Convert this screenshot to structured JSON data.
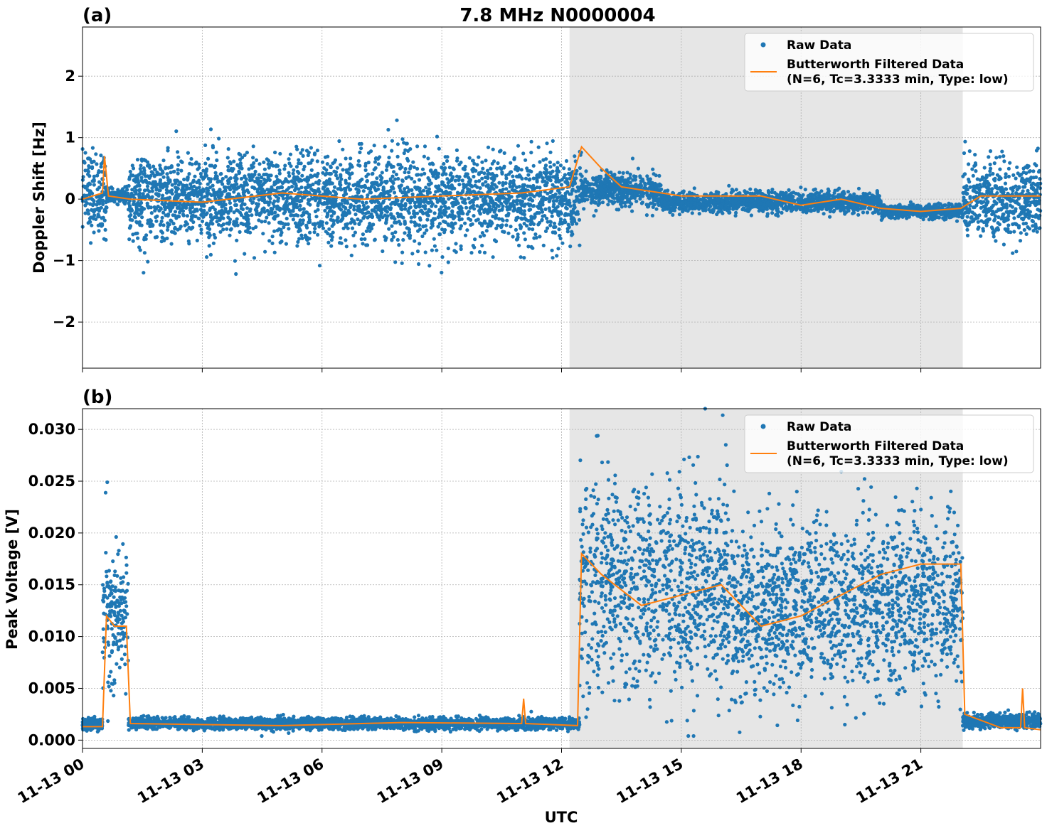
{
  "figure": {
    "title": "7.8 MHz N0000004",
    "xlabel": "UTC",
    "x_tick_labels": [
      "11-13 00",
      "11-13 03",
      "11-13 06",
      "11-13 09",
      "11-13 12",
      "11-13 15",
      "11-13 18",
      "11-13 21"
    ],
    "legend": {
      "raw": "Raw Data",
      "filtered_line1": "Butterworth Filtered Data",
      "filtered_line2": "(N=6, Tc=3.3333 min, Type: low)",
      "placement": "upper right"
    },
    "colors": {
      "raw": "#1f77b4",
      "filtered": "#ff7f0e",
      "shade": "#e6e6e6",
      "grid": "#b0b0b0"
    }
  },
  "chart_data": [
    {
      "type": "scatter",
      "panel_label": "(a)",
      "ylabel": "Doppler Shift [Hz]",
      "xlim_hours": [
        0,
        24
      ],
      "ylim": [
        -2.75,
        2.8
      ],
      "y_ticks": [
        2,
        1,
        0,
        -1,
        -2
      ],
      "y_tick_labels": [
        "2",
        "1",
        "0",
        "−1",
        "−2"
      ],
      "shaded_region_hours": [
        12.2,
        22.05
      ],
      "grid": true,
      "series": [
        {
          "name": "Raw Data",
          "style": "points",
          "segments": [
            {
              "x": [
                0.0,
                0.6
              ],
              "center": 0.1,
              "spread": 0.75
            },
            {
              "x": [
                0.6,
                1.15
              ],
              "center": 0.05,
              "spread": 0.12
            },
            {
              "x": [
                1.15,
                12.5
              ],
              "center": 0.0,
              "spread": 0.8
            },
            {
              "x": [
                12.5,
                14.5
              ],
              "center": 0.15,
              "spread": 0.3
            },
            {
              "x": [
                14.5,
                20.0
              ],
              "center": -0.05,
              "spread": 0.18
            },
            {
              "x": [
                20.0,
                22.05
              ],
              "center": -0.2,
              "spread": 0.12
            },
            {
              "x": [
                22.05,
                24.0
              ],
              "center": 0.0,
              "spread": 0.7
            }
          ]
        },
        {
          "name": "Butterworth Filtered Data\n(N=6, Tc=3.3333 min, Type: low)",
          "style": "line",
          "x": [
            0,
            0.5,
            0.55,
            0.65,
            1.2,
            3,
            5,
            7,
            9,
            11,
            12.2,
            12.5,
            13.0,
            13.5,
            15,
            17,
            18,
            19,
            20,
            21,
            22,
            22.5,
            24
          ],
          "y": [
            0.0,
            0.1,
            0.7,
            0.05,
            0.0,
            -0.05,
            0.1,
            0.0,
            0.05,
            0.1,
            0.2,
            0.85,
            0.5,
            0.2,
            0.05,
            0.05,
            -0.1,
            0.0,
            -0.15,
            -0.2,
            -0.15,
            0.05,
            0.05
          ]
        }
      ]
    },
    {
      "type": "scatter",
      "panel_label": "(b)",
      "ylabel": "Peak Voltage [V]",
      "xlim_hours": [
        0,
        24
      ],
      "ylim": [
        -0.0008,
        0.032
      ],
      "y_ticks": [
        0.03,
        0.025,
        0.02,
        0.015,
        0.01,
        0.005,
        0.0
      ],
      "y_tick_labels": [
        "0.030",
        "0.025",
        "0.020",
        "0.015",
        "0.010",
        "0.005",
        "0.000"
      ],
      "shaded_region_hours": [
        12.2,
        22.05
      ],
      "grid": true,
      "series": [
        {
          "name": "Raw Data",
          "style": "points",
          "segments": [
            {
              "x": [
                0.0,
                0.5
              ],
              "center": 0.0015,
              "spread": 0.0006
            },
            {
              "x": [
                0.5,
                1.15
              ],
              "center": 0.012,
              "spread": 0.008
            },
            {
              "x": [
                1.15,
                12.45
              ],
              "center": 0.0016,
              "spread": 0.0006
            },
            {
              "x": [
                12.45,
                16.2
              ],
              "center": 0.015,
              "spread": 0.011
            },
            {
              "x": [
                16.2,
                22.05
              ],
              "center": 0.013,
              "spread": 0.009
            },
            {
              "x": [
                22.05,
                24.0
              ],
              "center": 0.0018,
              "spread": 0.0008
            }
          ]
        },
        {
          "name": "Butterworth Filtered Data\n(N=6, Tc=3.3333 min, Type: low)",
          "style": "line",
          "x": [
            0,
            0.5,
            0.6,
            0.8,
            1.1,
            1.2,
            5,
            8,
            11.0,
            11.05,
            11.1,
            12.4,
            12.5,
            13.0,
            14.0,
            15.0,
            16.0,
            17.0,
            18.0,
            19.0,
            20.0,
            21.0,
            22.0,
            22.1,
            23.0,
            23.5,
            23.55,
            23.6,
            24
          ],
          "y": [
            0.0013,
            0.0013,
            0.012,
            0.011,
            0.011,
            0.0016,
            0.0014,
            0.0017,
            0.0016,
            0.004,
            0.0016,
            0.0014,
            0.018,
            0.016,
            0.013,
            0.014,
            0.015,
            0.011,
            0.012,
            0.014,
            0.016,
            0.017,
            0.017,
            0.0025,
            0.0012,
            0.0012,
            0.005,
            0.0012,
            0.001
          ]
        }
      ]
    }
  ]
}
